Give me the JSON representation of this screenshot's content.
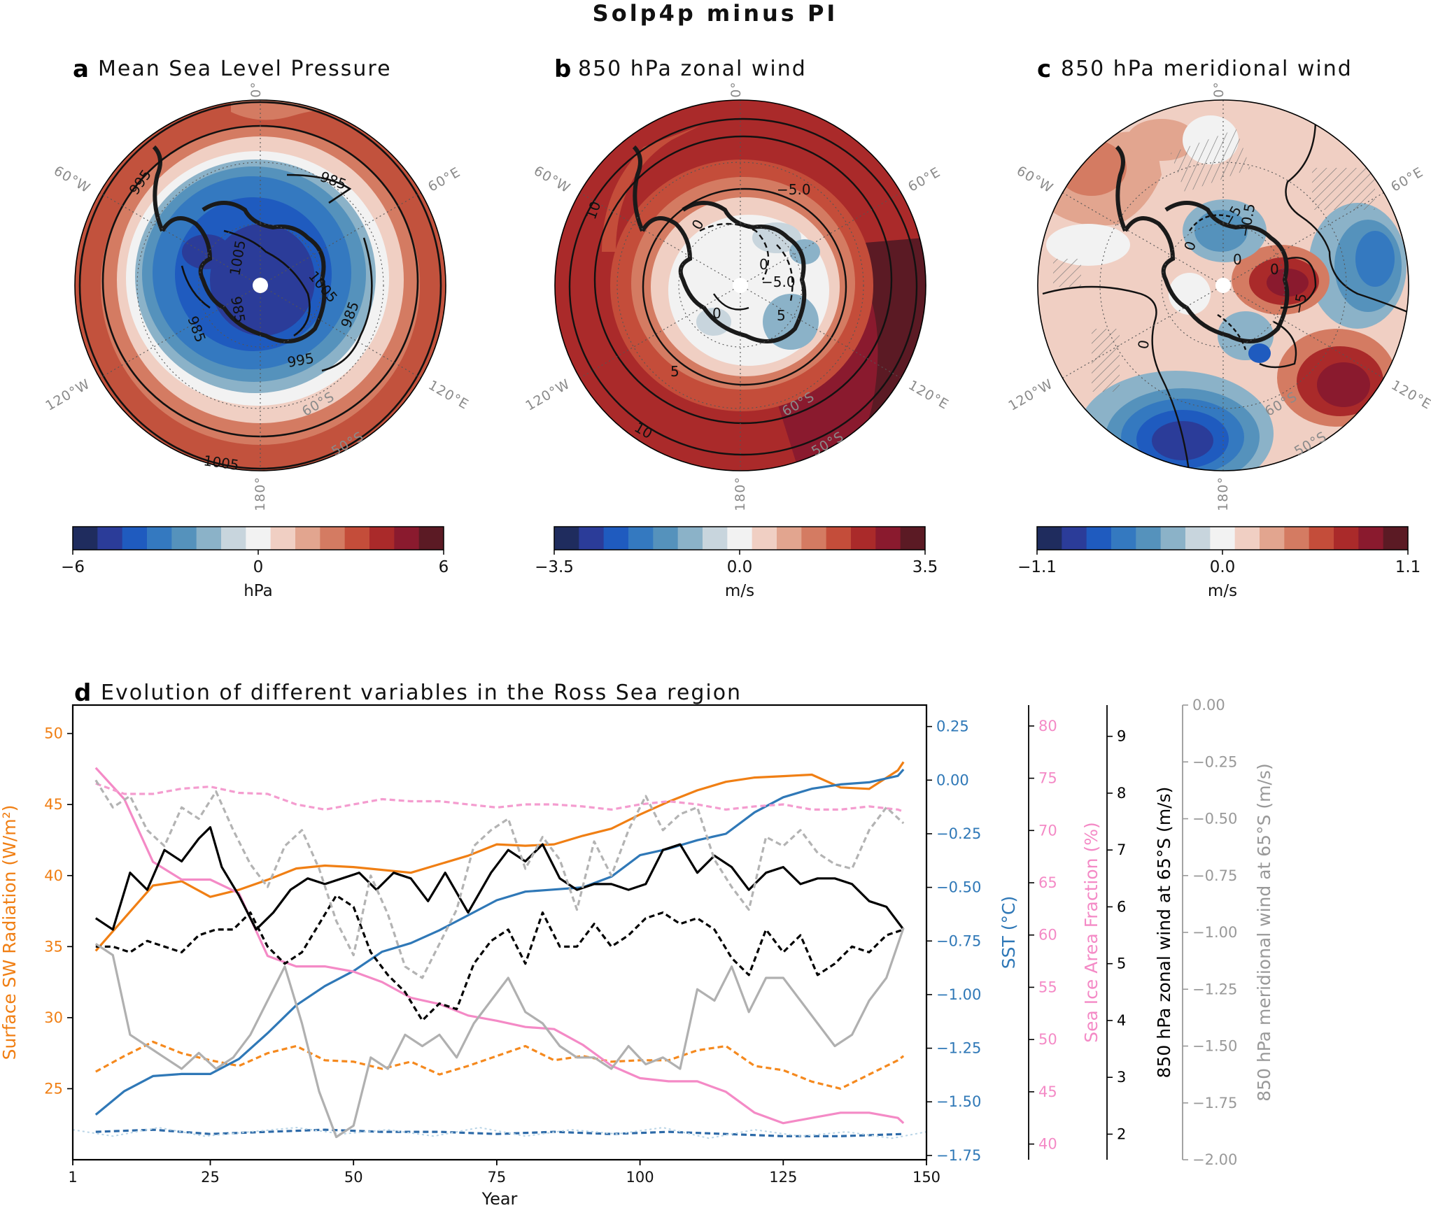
{
  "figure_title": "Solp4p minus PI",
  "colors": {
    "orange": "#f07f14",
    "orange_dash": "#f5891e",
    "blue": "#2f78b7",
    "blue_dash": "#2d6aa8",
    "pink": "#f48ac6",
    "pink_dash": "#f49ccf",
    "black": "#000000",
    "gray": "#b0b0b0",
    "gray_dash": "#b3b3b3",
    "lightblue": "#b8d4e6",
    "diverging": [
      "#1f2c5e",
      "#2b3c99",
      "#1f5bbf",
      "#3479c0",
      "#5592bc",
      "#8bb2c8",
      "#c8d5dd",
      "#f2f2f2",
      "#f0cfc3",
      "#e2a58f",
      "#d47b62",
      "#c44d3a",
      "#aa2a2a",
      "#8a1a2e",
      "#5b1a24"
    ]
  },
  "maps": [
    {
      "letter": "a",
      "title": "Mean Sea Level Pressure",
      "cbar": {
        "min": "−6",
        "mid": "0",
        "max": "6",
        "unit": "hPa"
      },
      "lon_labels": [
        "0°",
        "60°E",
        "120°E",
        "180°",
        "120°W",
        "60°W"
      ],
      "lat_labels": [
        "60°S",
        "50°S"
      ],
      "contour_labels": [
        "995",
        "985",
        "1005",
        "985",
        "1005",
        "985",
        "985",
        "1005",
        "995"
      ]
    },
    {
      "letter": "b",
      "title": "850 hPa zonal wind",
      "cbar": {
        "min": "−3.5",
        "mid": "0.0",
        "max": "3.5",
        "unit": "m/s"
      },
      "lon_labels": [
        "0°",
        "60°E",
        "120°E",
        "180°",
        "120°W",
        "60°W"
      ],
      "lat_labels": [
        "60°S",
        "50°S"
      ],
      "contour_labels": [
        "10",
        "5",
        "10",
        "−5.0",
        "0",
        "−5.0",
        "0",
        "5",
        "0"
      ]
    },
    {
      "letter": "c",
      "title": "850 hPa meridional wind",
      "cbar": {
        "min": "−1.1",
        "mid": "0.0",
        "max": "1.1",
        "unit": "m/s"
      },
      "lon_labels": [
        "0°",
        "60°E",
        "120°E",
        "180°",
        "120°W",
        "60°W"
      ],
      "lat_labels": [
        "60°S",
        "50°S"
      ],
      "contour_labels": [
        "0",
        "−5",
        "0",
        "−0.5",
        "0",
        "−5",
        "0"
      ]
    }
  ],
  "chart_data": {
    "type": "line",
    "title": "Evolution of different variables in the Ross Sea region",
    "letter": "d",
    "xlabel": "Year",
    "xlim": [
      1,
      150
    ],
    "xticks": [
      "1",
      "25",
      "50",
      "75",
      "100",
      "125",
      "150"
    ],
    "axes": [
      {
        "id": "sw",
        "label": "Surface SW Radiation (W/m²)",
        "color": "#f07f14",
        "lim": [
          20,
          52
        ],
        "ticks": [
          "25",
          "30",
          "35",
          "40",
          "45",
          "50"
        ]
      },
      {
        "id": "sst",
        "label": "SST (°C)",
        "color": "#2f78b7",
        "lim": [
          -1.77,
          0.35
        ],
        "ticks": [
          "0.25",
          "0.00",
          "−0.25",
          "−0.50",
          "−0.75",
          "−1.00",
          "−1.25",
          "−1.50",
          "−1.75"
        ]
      },
      {
        "id": "sic",
        "label": "Sea Ice Area Fraction (%)",
        "color": "#f48ac6",
        "lim": [
          38.5,
          82
        ],
        "ticks": [
          "40",
          "45",
          "50",
          "55",
          "60",
          "65",
          "70",
          "75",
          "80"
        ]
      },
      {
        "id": "u",
        "label": "850 hPa zonal wind at 65°S (m/s)",
        "color": "#000000",
        "lim": [
          1.55,
          9.55
        ],
        "ticks": [
          "2",
          "3",
          "4",
          "5",
          "6",
          "7",
          "8",
          "9"
        ]
      },
      {
        "id": "v",
        "label": "850 hPa meridional wind at 65°S (m/s)",
        "color": "#999999",
        "lim": [
          -2.0,
          0.0
        ],
        "ticks": [
          "0.00",
          "−0.25",
          "−0.50",
          "−0.75",
          "−1.00",
          "−1.25",
          "−1.50",
          "−1.75",
          "−2.00"
        ]
      }
    ],
    "series": [
      {
        "name": "SW Solp4p",
        "axis": "sw",
        "style": "solid",
        "color": "#f07f14",
        "x": [
          5,
          10,
          15,
          20,
          25,
          30,
          35,
          40,
          45,
          50,
          55,
          60,
          65,
          70,
          75,
          80,
          85,
          90,
          95,
          100,
          105,
          110,
          115,
          120,
          125,
          130,
          135,
          140,
          145,
          146
        ],
        "values": [
          34.7,
          37.0,
          39.3,
          39.6,
          38.5,
          39.0,
          39.7,
          40.5,
          40.7,
          40.6,
          40.4,
          40.2,
          40.8,
          41.4,
          42.2,
          42.1,
          42.2,
          42.8,
          43.3,
          44.3,
          45.2,
          46.0,
          46.6,
          46.9,
          47.0,
          47.1,
          46.2,
          46.1,
          47.4,
          48.0
        ]
      },
      {
        "name": "SW PI",
        "axis": "sw",
        "style": "dashed",
        "color": "#f5891e",
        "x": [
          5,
          10,
          15,
          20,
          25,
          30,
          35,
          40,
          45,
          50,
          55,
          60,
          65,
          70,
          75,
          80,
          85,
          90,
          95,
          100,
          105,
          110,
          115,
          120,
          125,
          130,
          135,
          140,
          145,
          146
        ],
        "values": [
          26.2,
          27.3,
          28.3,
          27.5,
          27.0,
          26.6,
          27.5,
          28.0,
          27.0,
          26.9,
          26.4,
          26.9,
          26.0,
          26.6,
          27.3,
          28.0,
          27.0,
          27.3,
          26.9,
          27.0,
          27.0,
          27.7,
          28.0,
          26.6,
          26.3,
          25.5,
          25.0,
          26.0,
          27.0,
          27.3
        ]
      },
      {
        "name": "SST Solp4p",
        "axis": "sst",
        "style": "solid",
        "color": "#2f78b7",
        "x": [
          5,
          10,
          15,
          20,
          25,
          30,
          35,
          40,
          45,
          50,
          55,
          60,
          65,
          70,
          75,
          80,
          85,
          90,
          95,
          100,
          105,
          110,
          115,
          120,
          125,
          130,
          135,
          140,
          145,
          146
        ],
        "values": [
          -1.56,
          -1.45,
          -1.38,
          -1.37,
          -1.37,
          -1.3,
          -1.18,
          -1.05,
          -0.96,
          -0.89,
          -0.8,
          -0.76,
          -0.7,
          -0.63,
          -0.56,
          -0.52,
          -0.51,
          -0.5,
          -0.45,
          -0.35,
          -0.32,
          -0.28,
          -0.25,
          -0.15,
          -0.08,
          -0.04,
          -0.02,
          -0.01,
          0.02,
          0.05
        ]
      },
      {
        "name": "SST PI",
        "axis": "sst",
        "style": "dashed",
        "color": "#2d6aa8",
        "x": [
          5,
          15,
          25,
          35,
          45,
          55,
          65,
          75,
          85,
          95,
          105,
          115,
          125,
          135,
          146
        ],
        "values": [
          -1.64,
          -1.63,
          -1.65,
          -1.64,
          -1.63,
          -1.64,
          -1.64,
          -1.65,
          -1.64,
          -1.65,
          -1.64,
          -1.65,
          -1.66,
          -1.66,
          -1.65
        ]
      },
      {
        "name": "SST PI (raw)",
        "axis": "sst",
        "style": "dotted",
        "color": "#b8d4e6",
        "x": [
          1,
          8,
          16,
          24,
          32,
          40,
          48,
          56,
          64,
          72,
          80,
          88,
          96,
          104,
          112,
          120,
          128,
          136,
          144,
          150
        ],
        "values": [
          -1.63,
          -1.66,
          -1.62,
          -1.66,
          -1.64,
          -1.62,
          -1.65,
          -1.63,
          -1.66,
          -1.62,
          -1.66,
          -1.63,
          -1.65,
          -1.62,
          -1.67,
          -1.63,
          -1.66,
          -1.64,
          -1.67,
          -1.64
        ]
      },
      {
        "name": "SIC Solp4p",
        "axis": "sic",
        "style": "solid",
        "color": "#f48ac6",
        "x": [
          5,
          10,
          15,
          20,
          25,
          30,
          35,
          40,
          45,
          50,
          55,
          60,
          65,
          70,
          75,
          80,
          85,
          90,
          95,
          100,
          105,
          110,
          115,
          120,
          125,
          130,
          135,
          140,
          145,
          146
        ],
        "values": [
          76.0,
          73.0,
          67.0,
          65.3,
          65.3,
          64.0,
          58.0,
          57.0,
          57.0,
          56.5,
          55.5,
          54.0,
          53.4,
          52.3,
          51.8,
          51.2,
          51.0,
          49.5,
          47.5,
          46.3,
          46.0,
          46.0,
          45.0,
          43.0,
          42.0,
          42.5,
          43.0,
          43.0,
          42.5,
          42.0
        ]
      },
      {
        "name": "SIC PI",
        "axis": "sic",
        "style": "dashed",
        "color": "#f49ccf",
        "x": [
          5,
          10,
          15,
          20,
          25,
          30,
          35,
          40,
          45,
          50,
          55,
          60,
          65,
          70,
          75,
          80,
          85,
          90,
          95,
          100,
          105,
          110,
          115,
          120,
          125,
          130,
          135,
          140,
          145,
          146
        ],
        "values": [
          74.5,
          73.5,
          73.5,
          74.0,
          74.2,
          73.6,
          73.5,
          72.5,
          72.0,
          72.5,
          73.0,
          72.8,
          72.8,
          72.5,
          72.2,
          72.5,
          72.5,
          72.3,
          72.0,
          72.5,
          72.8,
          72.5,
          72.0,
          72.3,
          72.5,
          72.0,
          72.0,
          72.3,
          72.0,
          71.8
        ]
      },
      {
        "name": "U Solp4p",
        "axis": "u",
        "style": "solid",
        "color": "#000000",
        "x": [
          5,
          8,
          11,
          14,
          17,
          20,
          23,
          25,
          27,
          30,
          33,
          36,
          39,
          42,
          45,
          48,
          51,
          54,
          57,
          60,
          63,
          66,
          70,
          74,
          77,
          80,
          83,
          86,
          89,
          92,
          95,
          98,
          101,
          104,
          107,
          110,
          113,
          116,
          119,
          122,
          125,
          128,
          131,
          134,
          137,
          140,
          143,
          146
        ],
        "values": [
          5.8,
          5.6,
          6.6,
          6.3,
          7.0,
          6.8,
          7.2,
          7.4,
          6.7,
          6.2,
          5.6,
          5.9,
          6.3,
          6.5,
          6.4,
          6.5,
          6.6,
          6.3,
          6.6,
          6.5,
          6.1,
          6.6,
          5.9,
          6.6,
          7.0,
          6.8,
          7.1,
          6.5,
          6.3,
          6.4,
          6.4,
          6.3,
          6.4,
          7.0,
          7.1,
          6.6,
          6.9,
          6.7,
          6.3,
          6.6,
          6.7,
          6.4,
          6.5,
          6.5,
          6.4,
          6.1,
          6.0,
          5.6
        ]
      },
      {
        "name": "U PI",
        "axis": "u",
        "style": "dashed",
        "color": "#000000",
        "x": [
          5,
          8,
          11,
          14,
          17,
          20,
          23,
          26,
          29,
          32,
          35,
          38,
          41,
          44,
          47,
          50,
          53,
          56,
          59,
          62,
          65,
          68,
          71,
          74,
          77,
          80,
          83,
          86,
          89,
          92,
          95,
          98,
          101,
          104,
          107,
          110,
          113,
          116,
          119,
          122,
          125,
          128,
          131,
          134,
          137,
          140,
          143,
          146
        ],
        "values": [
          5.3,
          5.3,
          5.2,
          5.4,
          5.3,
          5.2,
          5.5,
          5.6,
          5.6,
          5.9,
          5.3,
          5.0,
          5.2,
          5.7,
          6.2,
          6.0,
          5.2,
          4.8,
          4.5,
          4.0,
          4.3,
          4.2,
          5.0,
          5.4,
          5.6,
          5.0,
          5.9,
          5.3,
          5.3,
          5.7,
          5.3,
          5.5,
          5.8,
          5.9,
          5.7,
          5.8,
          5.6,
          5.1,
          4.8,
          5.6,
          5.2,
          5.5,
          4.8,
          5.0,
          5.3,
          5.2,
          5.5,
          5.6
        ]
      },
      {
        "name": "V Solp4p",
        "axis": "v",
        "style": "solid",
        "color": "#b0b0b0",
        "x": [
          5,
          8,
          11,
          14,
          17,
          20,
          23,
          26,
          29,
          32,
          35,
          38,
          41,
          44,
          47,
          50,
          53,
          56,
          59,
          62,
          65,
          68,
          71,
          74,
          77,
          80,
          83,
          86,
          89,
          92,
          95,
          98,
          101,
          104,
          107,
          110,
          113,
          116,
          119,
          122,
          125,
          128,
          131,
          134,
          137,
          140,
          143,
          146
        ],
        "values": [
          -1.05,
          -1.1,
          -1.45,
          -1.5,
          -1.55,
          -1.6,
          -1.53,
          -1.6,
          -1.55,
          -1.45,
          -1.3,
          -1.15,
          -1.4,
          -1.7,
          -1.9,
          -1.85,
          -1.55,
          -1.6,
          -1.45,
          -1.5,
          -1.45,
          -1.55,
          -1.4,
          -1.3,
          -1.2,
          -1.35,
          -1.4,
          -1.5,
          -1.55,
          -1.55,
          -1.6,
          -1.5,
          -1.58,
          -1.55,
          -1.6,
          -1.25,
          -1.3,
          -1.15,
          -1.35,
          -1.2,
          -1.2,
          -1.3,
          -1.4,
          -1.5,
          -1.45,
          -1.3,
          -1.2,
          -0.98
        ]
      },
      {
        "name": "V PI",
        "axis": "v",
        "style": "dashed",
        "color": "#b3b3b3",
        "x": [
          5,
          8,
          11,
          14,
          17,
          20,
          23,
          26,
          29,
          32,
          35,
          38,
          41,
          44,
          47,
          50,
          53,
          56,
          59,
          62,
          65,
          68,
          71,
          74,
          77,
          80,
          83,
          86,
          89,
          92,
          95,
          98,
          101,
          104,
          107,
          110,
          113,
          116,
          119,
          122,
          125,
          128,
          131,
          134,
          137,
          140,
          143,
          146
        ],
        "values": [
          -0.33,
          -0.45,
          -0.4,
          -0.55,
          -0.62,
          -0.45,
          -0.5,
          -0.38,
          -0.55,
          -0.7,
          -0.8,
          -0.62,
          -0.55,
          -0.72,
          -0.95,
          -1.1,
          -0.75,
          -0.92,
          -1.15,
          -1.2,
          -1.05,
          -0.9,
          -0.62,
          -0.55,
          -0.5,
          -0.72,
          -0.58,
          -0.68,
          -0.9,
          -0.6,
          -0.75,
          -0.55,
          -0.4,
          -0.55,
          -0.48,
          -0.45,
          -0.68,
          -0.8,
          -0.9,
          -0.58,
          -0.62,
          -0.55,
          -0.65,
          -0.7,
          -0.72,
          -0.55,
          -0.45,
          -0.52
        ]
      }
    ]
  }
}
